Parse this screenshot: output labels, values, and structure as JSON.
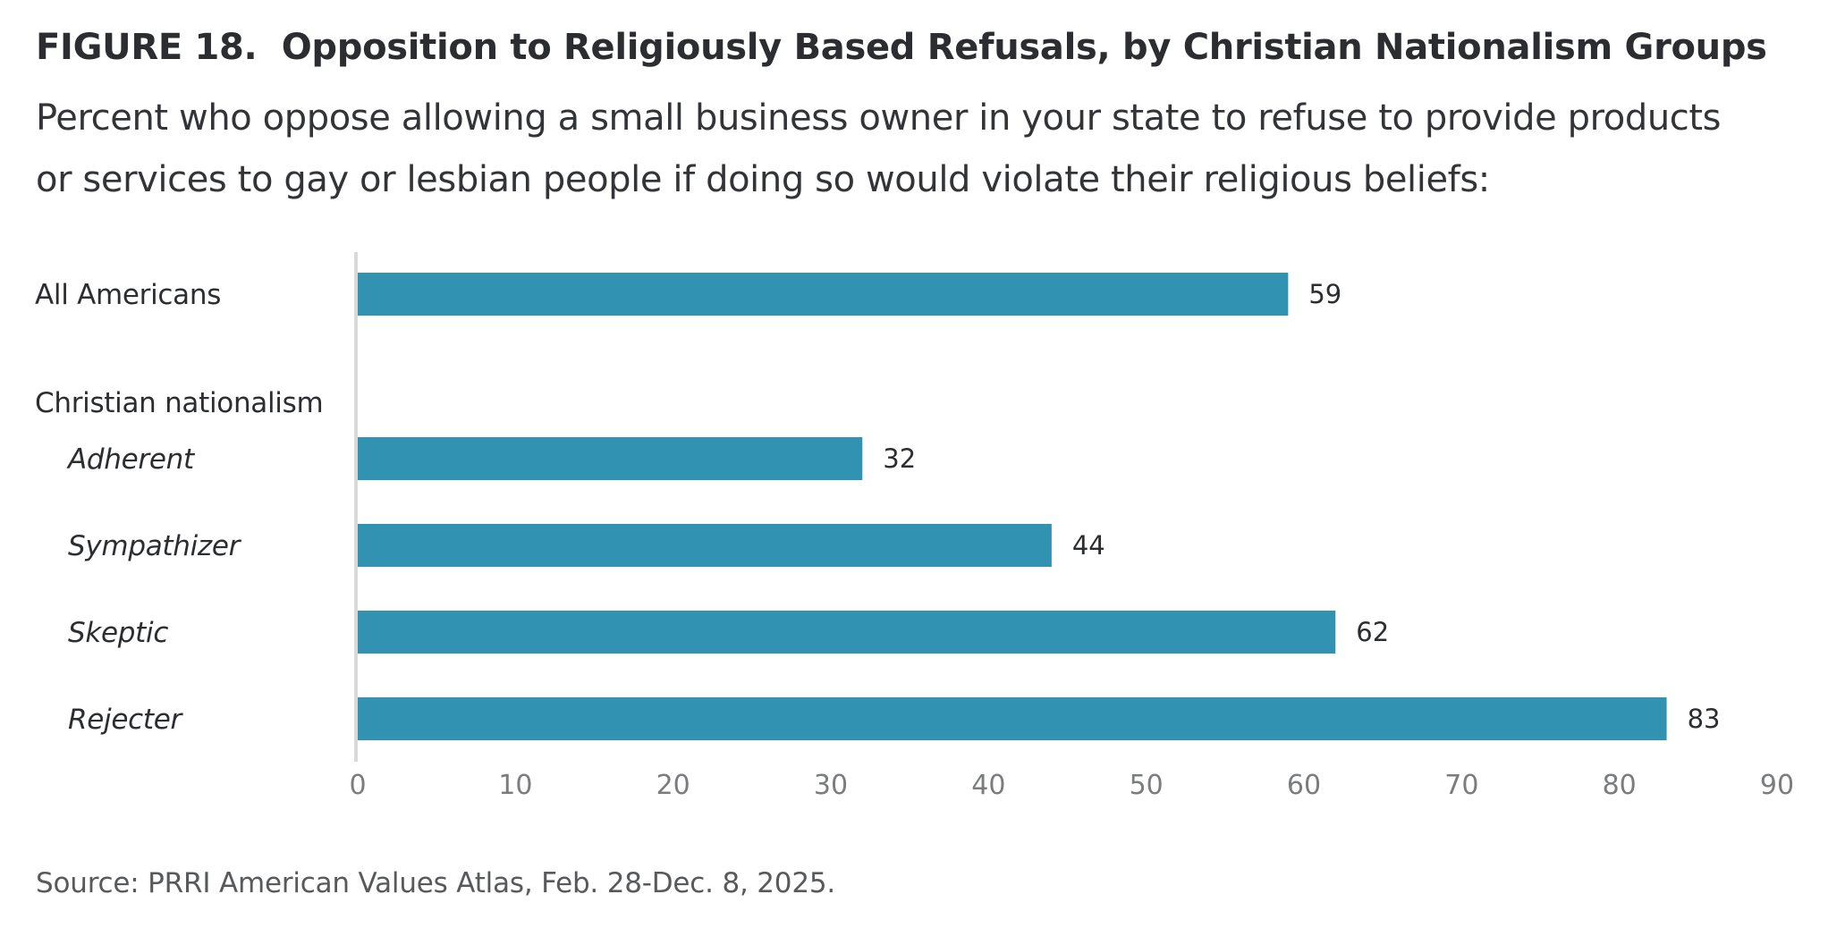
{
  "header": {
    "figure_label": "FIGURE 18.",
    "title": "Opposition to Religiously Based Refusals, by Christian Nationalism Groups",
    "subtitle_line1": "Percent who oppose allowing a small business owner in your state to refuse to provide products",
    "subtitle_line2": "or services to gay or lesbian people if doing so would violate their religious beliefs:"
  },
  "footer": {
    "source": "Source: PRRI American Values Atlas, Feb. 28-Dec. 8, 2025."
  },
  "colors": {
    "bar": "#3192b1",
    "axis": "#d9d9db",
    "tick_label": "#7b7c7e",
    "text": "#2b2d30"
  },
  "chart_data": {
    "type": "bar",
    "orientation": "horizontal",
    "title": "Opposition to Religiously Based Refusals, by Christian Nationalism Groups",
    "subtitle": "Percent who oppose allowing a small business owner in your state to refuse to provide products or services to gay or lesbian people if doing so would violate their religious beliefs:",
    "xlabel": "",
    "ylabel": "",
    "xlim": [
      0,
      90
    ],
    "xticks": [
      0,
      10,
      20,
      30,
      40,
      50,
      60,
      70,
      80,
      90
    ],
    "grid": false,
    "legend": "none",
    "rows": [
      {
        "kind": "bar",
        "label": "All Americans",
        "value": 59,
        "italic": false,
        "indent": false
      },
      {
        "kind": "group",
        "label": "Christian nationalism"
      },
      {
        "kind": "bar",
        "label": "Adherent",
        "value": 32,
        "italic": true,
        "indent": true
      },
      {
        "kind": "bar",
        "label": "Sympathizer",
        "value": 44,
        "italic": true,
        "indent": true
      },
      {
        "kind": "bar",
        "label": "Skeptic",
        "value": 62,
        "italic": true,
        "indent": true
      },
      {
        "kind": "bar",
        "label": "Rejecter",
        "value": 83,
        "italic": true,
        "indent": true
      }
    ],
    "categories": [
      "All Americans",
      "Adherent",
      "Sympathizer",
      "Skeptic",
      "Rejecter"
    ],
    "values": [
      59,
      32,
      44,
      62,
      83
    ],
    "source": "Source: PRRI American Values Atlas, Feb. 28-Dec. 8, 2025."
  }
}
